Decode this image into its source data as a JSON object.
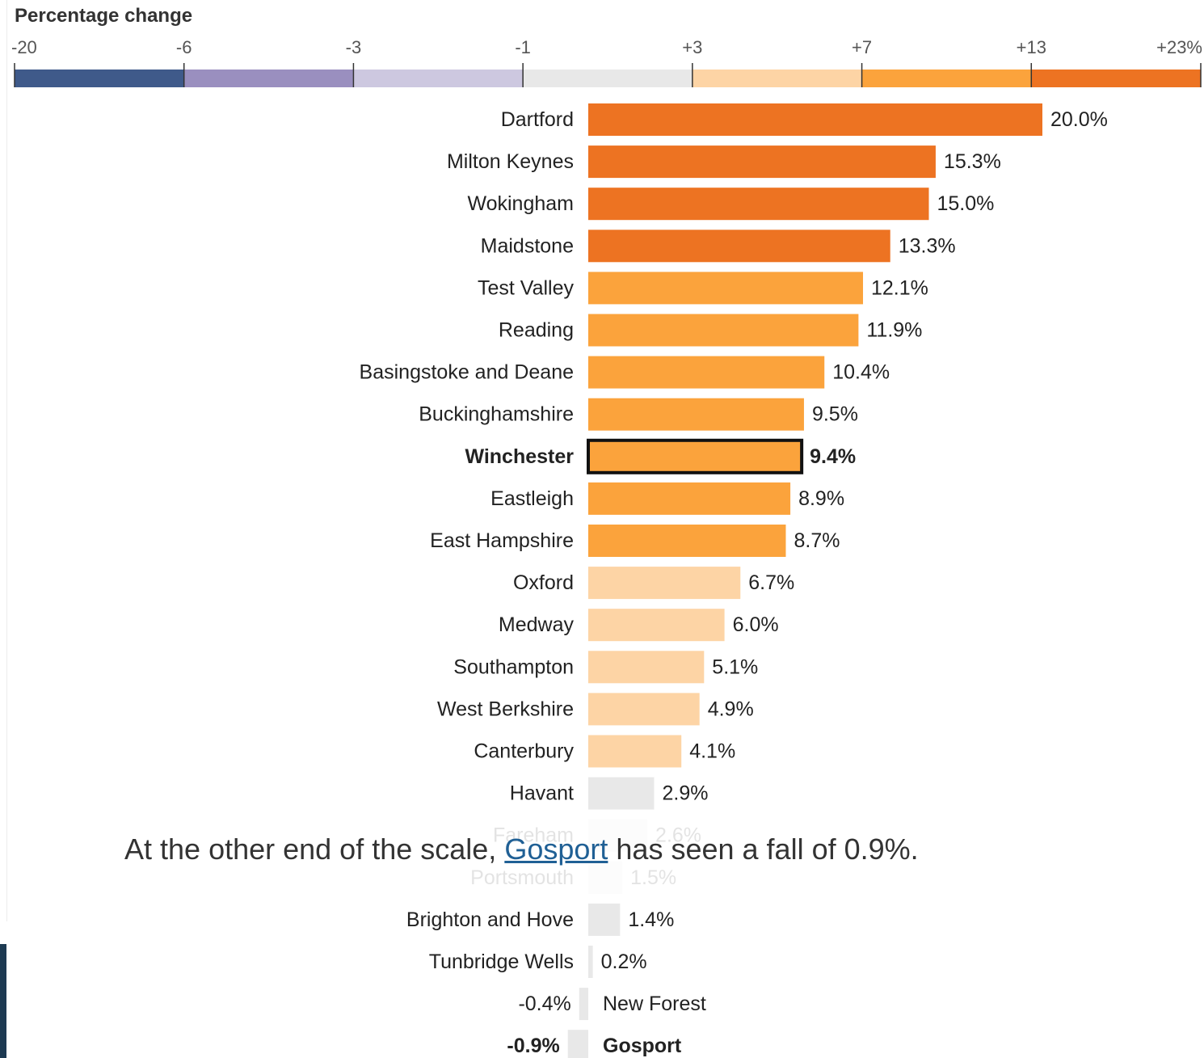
{
  "scale": {
    "title": "Percentage change",
    "breaks": [
      "-20",
      "-6",
      "-3",
      "-1",
      "+3",
      "+7",
      "+13",
      "+23%"
    ],
    "break_values": [
      -20,
      -6,
      -3,
      -1,
      3,
      7,
      13,
      23
    ],
    "colors": [
      "#3f5a8a",
      "#9a8fbf",
      "#cdc8e0",
      "#e8e8e8",
      "#fdd4a5",
      "#fba33c",
      "#ed7322"
    ]
  },
  "chart_data": {
    "type": "bar",
    "orientation": "horizontal",
    "title": "Percentage change",
    "xlim": [
      -20,
      23
    ],
    "highlighted": [
      "Winchester",
      "Gosport"
    ],
    "faded": [
      "Fareham",
      "Portsmouth"
    ],
    "categories": [
      "Dartford",
      "Milton Keynes",
      "Wokingham",
      "Maidstone",
      "Test Valley",
      "Reading",
      "Basingstoke and Deane",
      "Buckinghamshire",
      "Winchester",
      "Eastleigh",
      "East Hampshire",
      "Oxford",
      "Medway",
      "Southampton",
      "West Berkshire",
      "Canterbury",
      "Havant",
      "Fareham",
      "Portsmouth",
      "Brighton and Hove",
      "Tunbridge Wells",
      "New Forest",
      "Gosport"
    ],
    "values": [
      20.0,
      15.3,
      15.0,
      13.3,
      12.1,
      11.9,
      10.4,
      9.5,
      9.4,
      8.9,
      8.7,
      6.7,
      6.0,
      5.1,
      4.9,
      4.1,
      2.9,
      2.6,
      1.5,
      1.4,
      0.2,
      -0.4,
      -0.9
    ],
    "labels": [
      "20.0%",
      "15.3%",
      "15.0%",
      "13.3%",
      "12.1%",
      "11.9%",
      "10.4%",
      "9.5%",
      "9.4%",
      "8.9%",
      "8.7%",
      "6.7%",
      "6.0%",
      "5.1%",
      "4.9%",
      "4.1%",
      "2.9%",
      "2.6%",
      "1.5%",
      "1.4%",
      "0.2%",
      "-0.4%",
      "-0.9%"
    ]
  },
  "overlay": {
    "text_before": "At the other end of the scale,",
    "link": "Gosport",
    "text_after": "has seen a fall of 0.9%."
  }
}
